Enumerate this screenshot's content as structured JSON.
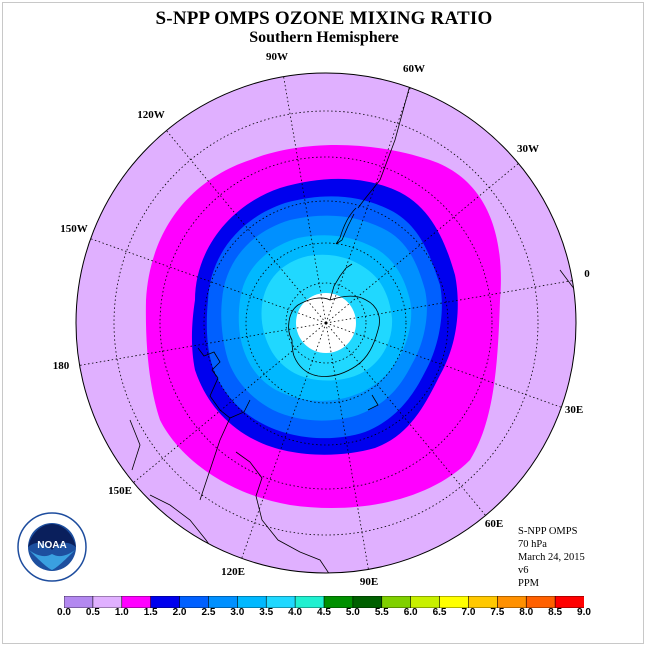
{
  "header": {
    "title": "S-NPP OMPS OZONE MIXING RATIO",
    "subtitle": "Southern Hemisphere"
  },
  "longitude_labels": [
    "90W",
    "60W",
    "30W",
    "0",
    "30E",
    "60E",
    "90E",
    "120E",
    "150E",
    "180",
    "150W",
    "120W"
  ],
  "info": {
    "instrument": "S-NPP OMPS",
    "level": "70 hPa",
    "date": "March 24, 2015",
    "version": "v6",
    "units": "PPM"
  },
  "logo": {
    "text": "NOAA",
    "icon": "noaa-logo"
  },
  "colorbar": {
    "labels": [
      "0.0",
      "0.5",
      "1.0",
      "1.5",
      "2.0",
      "2.5",
      "3.0",
      "3.5",
      "4.0",
      "4.5",
      "5.0",
      "5.5",
      "6.0",
      "6.5",
      "7.0",
      "7.5",
      "8.0",
      "8.5",
      "9.0"
    ],
    "colors": [
      "#b388f0",
      "#e0b0ff",
      "#ff00ff",
      "#0000ee",
      "#0060ff",
      "#0090ff",
      "#00b8ff",
      "#20d8ff",
      "#20f0d0",
      "#009000",
      "#006000",
      "#80d000",
      "#c8f000",
      "#ffff00",
      "#ffc800",
      "#ff9000",
      "#ff6000",
      "#ff0000",
      "#806040"
    ]
  },
  "map": {
    "projection": "south-polar-stereographic",
    "colors": {
      "0.5-1.0": "#e0b0ff",
      "1.0-1.5": "#ff00ff",
      "1.5-2.0": "#0000ee",
      "2.0-2.5": "#0060ff",
      "2.5-3.0": "#0090ff",
      "3.0-3.5": "#00b8ff",
      "3.5-4.0": "#20d8ff",
      "no-data": "#ffffff"
    }
  }
}
